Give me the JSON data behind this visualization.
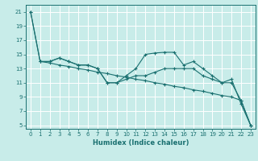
{
  "xlabel": "Humidex (Indice chaleur)",
  "background_color": "#c8ece9",
  "grid_color": "#ffffff",
  "line_color": "#1a7070",
  "xlim": [
    -0.5,
    23.5
  ],
  "ylim": [
    4.5,
    22
  ],
  "yticks": [
    5,
    7,
    9,
    11,
    13,
    15,
    17,
    19,
    21
  ],
  "xticks": [
    0,
    1,
    2,
    3,
    4,
    5,
    6,
    7,
    8,
    9,
    10,
    11,
    12,
    13,
    14,
    15,
    16,
    17,
    18,
    19,
    20,
    21,
    22,
    23
  ],
  "lines": [
    {
      "x": [
        0,
        1,
        2,
        3,
        4,
        5,
        6,
        7,
        8,
        9,
        10,
        11,
        12,
        13,
        14,
        15,
        16,
        17,
        18,
        19,
        20,
        21,
        22,
        23
      ],
      "y": [
        21,
        14,
        14.0,
        14.5,
        14.0,
        13.5,
        13.5,
        13.0,
        11.0,
        11.0,
        12.0,
        13.0,
        15.0,
        15.2,
        15.3,
        15.3,
        13.5,
        14.0,
        13.0,
        12.0,
        11.0,
        11.0,
        8.5,
        5.0
      ]
    },
    {
      "x": [
        0,
        1,
        2,
        3,
        4,
        5,
        6,
        7,
        8,
        9,
        10,
        11,
        12,
        13,
        14,
        15,
        16,
        17,
        18,
        19,
        20,
        21,
        22,
        23
      ],
      "y": [
        21,
        14,
        14.0,
        14.5,
        14.0,
        13.5,
        13.5,
        13.0,
        11.0,
        11.0,
        11.5,
        12.0,
        12.0,
        12.5,
        13.0,
        13.0,
        13.0,
        13.0,
        12.0,
        11.5,
        11.0,
        11.5,
        8.0,
        5.0
      ]
    },
    {
      "x": [
        1,
        2,
        3,
        4,
        5,
        6,
        7,
        8,
        9,
        10,
        11,
        12,
        13,
        14,
        15,
        16,
        17,
        18,
        19,
        20,
        21,
        22,
        23
      ],
      "y": [
        14,
        13.8,
        13.5,
        13.3,
        13.0,
        12.8,
        12.5,
        12.3,
        12.0,
        11.8,
        11.5,
        11.3,
        11.0,
        10.8,
        10.5,
        10.3,
        10.0,
        9.8,
        9.5,
        9.2,
        9.0,
        8.5,
        5.0
      ]
    }
  ]
}
